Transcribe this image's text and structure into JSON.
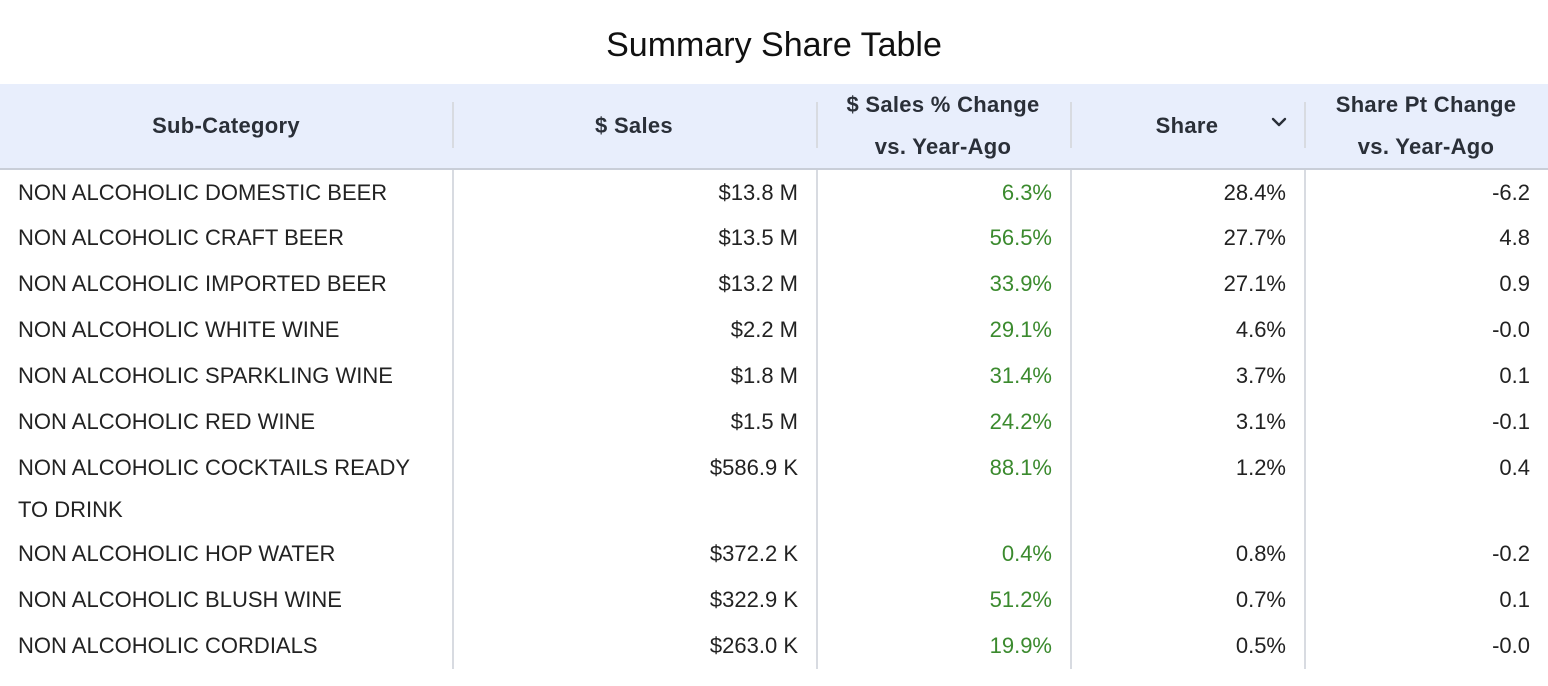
{
  "title": "Summary Share Table",
  "colors": {
    "header_bg": "#e8eefc",
    "positive_change": "#3b8a2e",
    "text": "#222222"
  },
  "chart_data": {
    "type": "table",
    "title": "Summary Share Table",
    "columns": [
      "Sub-Category",
      "$ Sales",
      "$ Sales % Change vs. Year-Ago",
      "Share",
      "Share Pt Change vs. Year-Ago"
    ],
    "sorted_by": "Share",
    "sort_order": "descending",
    "rows": [
      {
        "subcategory": "NON ALCOHOLIC DOMESTIC BEER",
        "sales": "$13.8 M",
        "sales_pct_change": "6.3%",
        "share": "28.4%",
        "share_pt_change": "-6.2"
      },
      {
        "subcategory": "NON ALCOHOLIC CRAFT BEER",
        "sales": "$13.5 M",
        "sales_pct_change": "56.5%",
        "share": "27.7%",
        "share_pt_change": "4.8"
      },
      {
        "subcategory": "NON ALCOHOLIC IMPORTED BEER",
        "sales": "$13.2 M",
        "sales_pct_change": "33.9%",
        "share": "27.1%",
        "share_pt_change": "0.9"
      },
      {
        "subcategory": "NON ALCOHOLIC WHITE WINE",
        "sales": "$2.2 M",
        "sales_pct_change": "29.1%",
        "share": "4.6%",
        "share_pt_change": "-0.0"
      },
      {
        "subcategory": "NON ALCOHOLIC SPARKLING WINE",
        "sales": "$1.8 M",
        "sales_pct_change": "31.4%",
        "share": "3.7%",
        "share_pt_change": "0.1"
      },
      {
        "subcategory": "NON ALCOHOLIC RED WINE",
        "sales": "$1.5 M",
        "sales_pct_change": "24.2%",
        "share": "3.1%",
        "share_pt_change": "-0.1"
      },
      {
        "subcategory": "NON ALCOHOLIC COCKTAILS READY TO DRINK",
        "sales": "$586.9 K",
        "sales_pct_change": "88.1%",
        "share": "1.2%",
        "share_pt_change": "0.4"
      },
      {
        "subcategory": "NON ALCOHOLIC HOP WATER",
        "sales": "$372.2 K",
        "sales_pct_change": "0.4%",
        "share": "0.8%",
        "share_pt_change": "-0.2"
      },
      {
        "subcategory": "NON ALCOHOLIC BLUSH WINE",
        "sales": "$322.9 K",
        "sales_pct_change": "51.2%",
        "share": "0.7%",
        "share_pt_change": "0.1"
      },
      {
        "subcategory": "NON ALCOHOLIC CORDIALS",
        "sales": "$263.0 K",
        "sales_pct_change": "19.9%",
        "share": "0.5%",
        "share_pt_change": "-0.0"
      }
    ]
  },
  "header": {
    "col1": "Sub-Category",
    "col2": "$ Sales",
    "col3_line1": "$ Sales % Change",
    "col3_line2": "vs. Year-Ago",
    "col4": "Share",
    "col5_line1": "Share Pt Change",
    "col5_line2": "vs. Year-Ago",
    "sort_icon": "chevron-down-icon"
  }
}
